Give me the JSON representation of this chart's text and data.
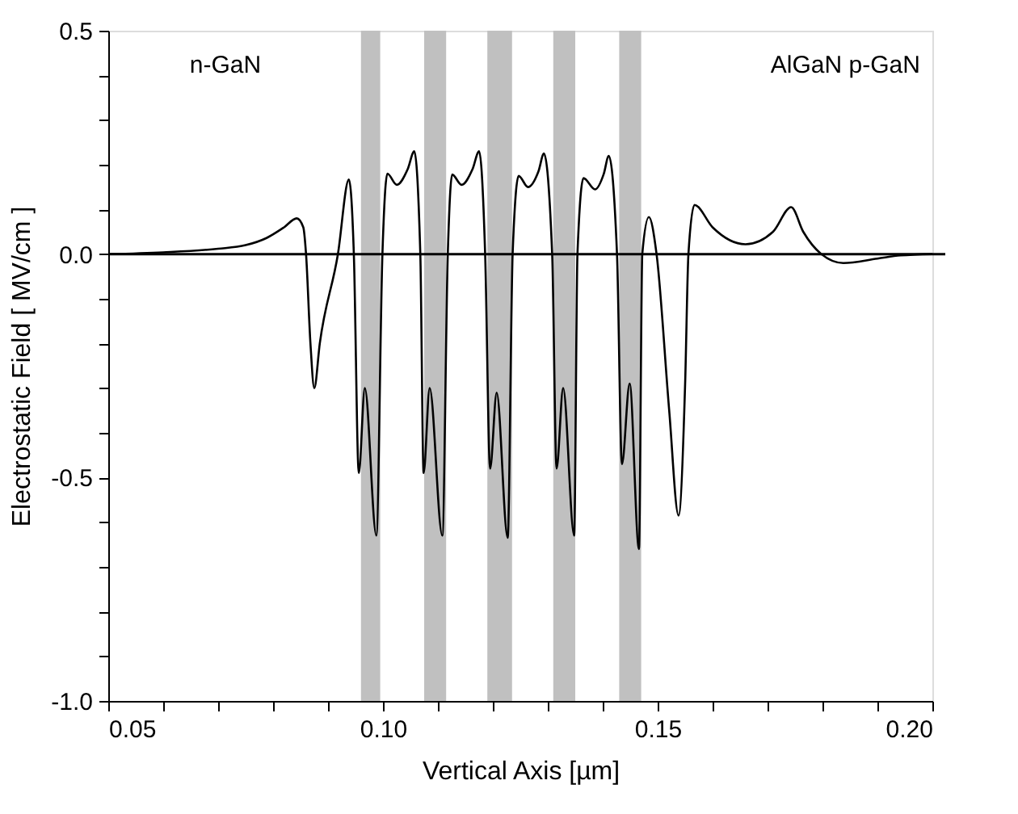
{
  "chart_data": {
    "type": "line",
    "xlabel": "Vertical Axis [µm]",
    "ylabel": "Electrostatic Field [ MV/cm ]",
    "annotations": [
      "n-GaN",
      "AlGaN  p-GaN"
    ],
    "series": [
      {
        "color": "#000000",
        "x": [
          0.05,
          0.06,
          0.07,
          0.075,
          0.0788,
          0.082,
          0.0843,
          0.0855,
          0.086,
          0.0868,
          0.0875,
          0.0885,
          0.0918,
          0.0938,
          0.0947,
          0.0956,
          0.0967,
          0.0988,
          0.0999,
          0.1008,
          0.1025,
          0.1045,
          0.1057,
          0.1068,
          0.1074,
          0.1085,
          0.1108,
          0.1118,
          0.1126,
          0.1143,
          0.1163,
          0.1175,
          0.1186,
          0.1195,
          0.1207,
          0.1227,
          0.1236,
          0.1247,
          0.1264,
          0.1283,
          0.1293,
          0.1308,
          0.1316,
          0.1328,
          0.1348,
          0.1354,
          0.1365,
          0.1386,
          0.1402,
          0.1411,
          0.1426,
          0.1435,
          0.1449,
          0.1466,
          0.1472,
          0.1484,
          0.1498,
          0.1521,
          0.1538,
          0.155,
          0.1556,
          0.1567,
          0.16,
          0.166,
          0.171,
          0.1743,
          0.1765,
          0.1798,
          0.1838,
          0.19,
          0.1942,
          0.2
        ],
        "values": [
          0.0,
          0.004,
          0.012,
          0.02,
          0.036,
          0.06,
          0.08,
          0.06,
          0.0,
          -0.2,
          -0.3,
          -0.2,
          0.0,
          0.167,
          0.0,
          -0.49,
          -0.3,
          -0.63,
          0.0,
          0.18,
          0.155,
          0.19,
          0.23,
          0.0,
          -0.49,
          -0.3,
          -0.63,
          0.0,
          0.178,
          0.155,
          0.19,
          0.23,
          0.0,
          -0.48,
          -0.31,
          -0.635,
          0.0,
          0.175,
          0.15,
          0.185,
          0.225,
          0.0,
          -0.48,
          -0.3,
          -0.63,
          0.0,
          0.17,
          0.145,
          0.18,
          0.22,
          0.0,
          -0.47,
          -0.29,
          -0.66,
          0.0,
          0.083,
          0.0,
          -0.35,
          -0.585,
          -0.29,
          0.0,
          0.11,
          0.06,
          0.022,
          0.05,
          0.105,
          0.05,
          0.0,
          -0.02,
          -0.01,
          -0.003,
          0.0
        ]
      }
    ],
    "xlim": [
      0.05,
      0.2
    ],
    "xticks": [
      {
        "value": 0.05,
        "label": "0.05"
      },
      {
        "value": 0.06,
        "label": null
      },
      {
        "value": 0.07,
        "label": null
      },
      {
        "value": 0.08,
        "label": null
      },
      {
        "value": 0.09,
        "label": null
      },
      {
        "value": 0.1,
        "label": "0.10"
      },
      {
        "value": 0.11,
        "label": null
      },
      {
        "value": 0.12,
        "label": null
      },
      {
        "value": 0.13,
        "label": null
      },
      {
        "value": 0.14,
        "label": null
      },
      {
        "value": 0.15,
        "label": "0.15"
      },
      {
        "value": 0.16,
        "label": null
      },
      {
        "value": 0.17,
        "label": null
      },
      {
        "value": 0.18,
        "label": null
      },
      {
        "value": 0.19,
        "label": null
      },
      {
        "value": 0.2,
        "label": "0.20"
      }
    ],
    "ylim": [
      -1.0,
      0.5
    ],
    "yticks": [
      {
        "value": -1.0,
        "label": "-1.0"
      },
      {
        "value": -0.9,
        "label": null
      },
      {
        "value": -0.8,
        "label": null
      },
      {
        "value": -0.7,
        "label": null
      },
      {
        "value": -0.6,
        "label": null
      },
      {
        "value": -0.5,
        "label": "-0.5"
      },
      {
        "value": -0.4,
        "label": null
      },
      {
        "value": -0.3,
        "label": null
      },
      {
        "value": -0.2,
        "label": null
      },
      {
        "value": -0.1,
        "label": null
      },
      {
        "value": 0.0,
        "label": "0.0"
      },
      {
        "value": 0.1,
        "label": null
      },
      {
        "value": 0.2,
        "label": null
      },
      {
        "value": 0.3,
        "label": null
      },
      {
        "value": 0.4,
        "label": null
      },
      {
        "value": 0.5,
        "label": "0.5"
      }
    ],
    "ref_lines": [
      {
        "axis": "y",
        "value": 0.0,
        "color": "#000000"
      }
    ],
    "bands": [
      {
        "axis": "x",
        "from": 0.096,
        "to": 0.0995,
        "color": "#c0c0c0"
      },
      {
        "axis": "x",
        "from": 0.1075,
        "to": 0.1115,
        "color": "#c0c0c0"
      },
      {
        "axis": "x",
        "from": 0.119,
        "to": 0.1235,
        "color": "#c0c0c0"
      },
      {
        "axis": "x",
        "from": 0.131,
        "to": 0.135,
        "color": "#c0c0c0"
      },
      {
        "axis": "x",
        "from": 0.143,
        "to": 0.147,
        "color": "#c0c0c0"
      }
    ],
    "grid": false,
    "line_style": "solid",
    "marker": "none"
  }
}
